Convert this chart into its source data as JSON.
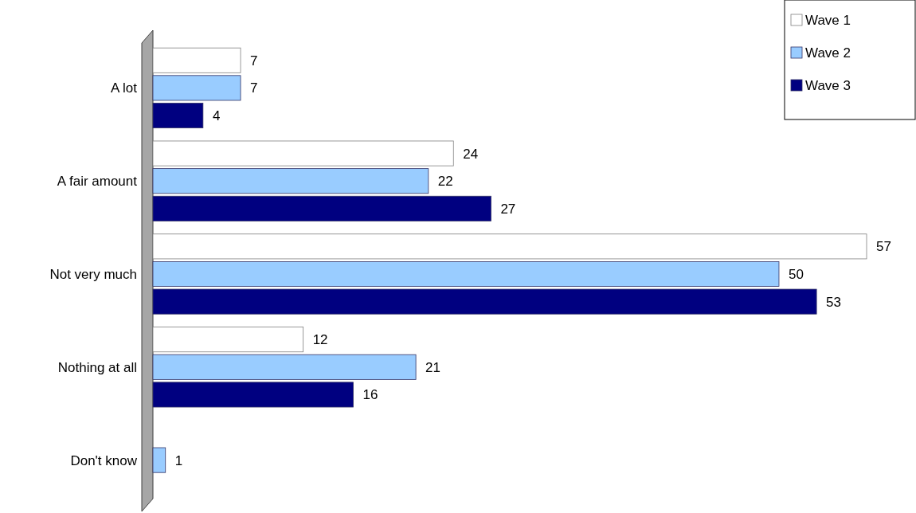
{
  "chart_data": {
    "type": "bar",
    "orientation": "horizontal",
    "categories": [
      "A lot",
      "A fair amount",
      "Not very much",
      "Nothing at all",
      "Don't know"
    ],
    "series": [
      {
        "name": "Wave 1",
        "color": "#ffffff",
        "values": [
          7,
          24,
          57,
          12,
          null
        ]
      },
      {
        "name": "Wave 2",
        "color": "#99ccff",
        "values": [
          7,
          22,
          50,
          21,
          1
        ]
      },
      {
        "name": "Wave 3",
        "color": "#000080",
        "values": [
          4,
          27,
          53,
          16,
          null
        ]
      }
    ],
    "data_labels": true,
    "legend": "top right"
  }
}
